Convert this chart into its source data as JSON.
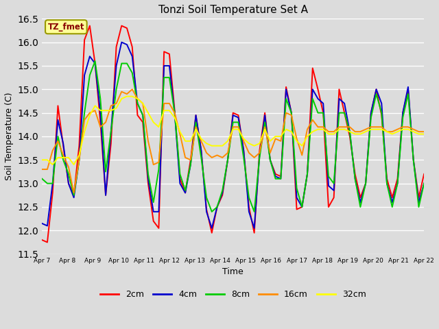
{
  "title": "Tonzi Soil Temperature Set A",
  "xlabel": "Time",
  "ylabel": "Soil Temperature (C)",
  "ylim": [
    11.5,
    16.5
  ],
  "legend_label": "TZ_fmet",
  "series_labels": [
    "2cm",
    "4cm",
    "8cm",
    "16cm",
    "32cm"
  ],
  "series_colors": [
    "#ff0000",
    "#0000cd",
    "#00cc00",
    "#ff8c00",
    "#ffff00"
  ],
  "tick_labels": [
    "Apr 7",
    "Apr 8",
    "Apr 9",
    "Apr 10",
    "Apr 11",
    "Apr 12",
    "Apr 13",
    "Apr 14",
    "Apr 15",
    "Apr 16",
    "Apr 17",
    "Apr 18",
    "Apr 19",
    "Apr 20",
    "Apr 21",
    "Apr 22"
  ],
  "background_color": "#dcdcdc",
  "grid_color": "#ffffff",
  "data_2cm": [
    11.8,
    11.75,
    12.8,
    14.65,
    13.8,
    13.0,
    12.75,
    13.8,
    16.05,
    16.35,
    15.55,
    14.3,
    12.75,
    13.85,
    15.9,
    16.35,
    16.3,
    15.9,
    14.45,
    14.3,
    13.0,
    12.2,
    12.05,
    15.8,
    15.75,
    14.55,
    13.1,
    12.8,
    13.5,
    14.45,
    13.7,
    12.45,
    11.95,
    12.5,
    12.75,
    13.5,
    14.5,
    14.45,
    13.7,
    12.5,
    11.95,
    13.7,
    14.5,
    13.5,
    13.2,
    13.15,
    15.05,
    14.5,
    12.45,
    12.5,
    13.2,
    15.45,
    15.0,
    14.5,
    12.5,
    12.7,
    15.0,
    14.5,
    14.0,
    13.2,
    12.7,
    13.0,
    14.5,
    15.0,
    14.45,
    13.1,
    12.7,
    13.1,
    14.5,
    15.0,
    13.5,
    12.7,
    13.2
  ],
  "data_4cm": [
    12.15,
    12.1,
    13.0,
    14.35,
    13.85,
    13.0,
    12.7,
    13.5,
    15.3,
    15.7,
    15.55,
    14.5,
    12.75,
    14.1,
    15.5,
    16.0,
    15.95,
    15.7,
    14.7,
    14.45,
    13.1,
    12.4,
    12.4,
    15.5,
    15.5,
    14.5,
    13.0,
    12.8,
    13.4,
    14.45,
    13.7,
    12.4,
    12.05,
    12.5,
    12.8,
    13.5,
    14.45,
    14.4,
    13.7,
    12.4,
    12.05,
    13.6,
    14.45,
    13.5,
    13.15,
    13.1,
    15.0,
    14.5,
    12.7,
    12.5,
    13.2,
    15.0,
    14.8,
    14.7,
    12.95,
    12.85,
    14.8,
    14.7,
    14.1,
    13.1,
    12.6,
    13.0,
    14.5,
    15.0,
    14.7,
    13.0,
    12.6,
    13.0,
    14.5,
    15.05,
    13.5,
    12.6,
    13.0
  ],
  "data_8cm": [
    13.1,
    13.0,
    13.0,
    14.0,
    13.5,
    13.2,
    12.75,
    13.5,
    14.5,
    15.3,
    15.6,
    14.8,
    13.25,
    14.1,
    15.0,
    15.55,
    15.55,
    15.35,
    14.7,
    14.45,
    13.2,
    12.6,
    13.3,
    15.25,
    15.25,
    14.5,
    13.2,
    12.85,
    13.4,
    14.3,
    13.55,
    12.7,
    12.4,
    12.5,
    12.85,
    13.5,
    14.3,
    14.3,
    13.55,
    12.7,
    12.4,
    13.55,
    14.3,
    13.5,
    13.1,
    13.1,
    14.8,
    14.5,
    12.9,
    12.5,
    13.2,
    14.8,
    14.5,
    14.5,
    13.15,
    13.0,
    14.5,
    14.5,
    14.1,
    13.1,
    12.5,
    13.0,
    14.4,
    14.9,
    14.5,
    13.0,
    12.5,
    13.0,
    14.4,
    14.9,
    13.5,
    12.5,
    13.0
  ],
  "data_16cm": [
    13.3,
    13.3,
    13.7,
    13.9,
    13.6,
    13.35,
    12.8,
    13.5,
    14.35,
    14.5,
    14.55,
    14.2,
    14.3,
    14.65,
    14.7,
    14.95,
    14.9,
    15.0,
    14.8,
    14.7,
    13.9,
    13.4,
    13.45,
    14.7,
    14.7,
    14.5,
    14.05,
    13.55,
    13.5,
    14.2,
    13.9,
    13.65,
    13.55,
    13.6,
    13.55,
    13.65,
    14.2,
    14.2,
    13.9,
    13.65,
    13.55,
    13.65,
    14.2,
    13.65,
    13.95,
    13.9,
    14.5,
    14.45,
    13.95,
    13.6,
    14.15,
    14.35,
    14.2,
    14.2,
    14.1,
    14.1,
    14.2,
    14.2,
    14.2,
    14.1,
    14.1,
    14.15,
    14.2,
    14.2,
    14.2,
    14.1,
    14.1,
    14.15,
    14.2,
    14.2,
    14.15,
    14.1,
    14.1
  ],
  "data_32cm": [
    13.5,
    13.5,
    13.4,
    13.55,
    13.55,
    13.55,
    13.4,
    13.6,
    14.1,
    14.45,
    14.65,
    14.55,
    14.55,
    14.55,
    14.6,
    14.8,
    14.85,
    14.85,
    14.8,
    14.7,
    14.5,
    14.3,
    14.2,
    14.55,
    14.55,
    14.4,
    14.1,
    13.9,
    13.9,
    14.15,
    13.95,
    13.85,
    13.8,
    13.8,
    13.8,
    13.9,
    14.15,
    14.15,
    13.95,
    13.85,
    13.8,
    13.85,
    14.15,
    13.9,
    14.0,
    14.0,
    14.15,
    14.1,
    13.9,
    13.8,
    14.0,
    14.1,
    14.15,
    14.15,
    14.05,
    14.05,
    14.15,
    14.15,
    14.1,
    14.05,
    14.05,
    14.1,
    14.15,
    14.15,
    14.15,
    14.1,
    14.05,
    14.1,
    14.15,
    14.15,
    14.1,
    14.05,
    14.05
  ]
}
